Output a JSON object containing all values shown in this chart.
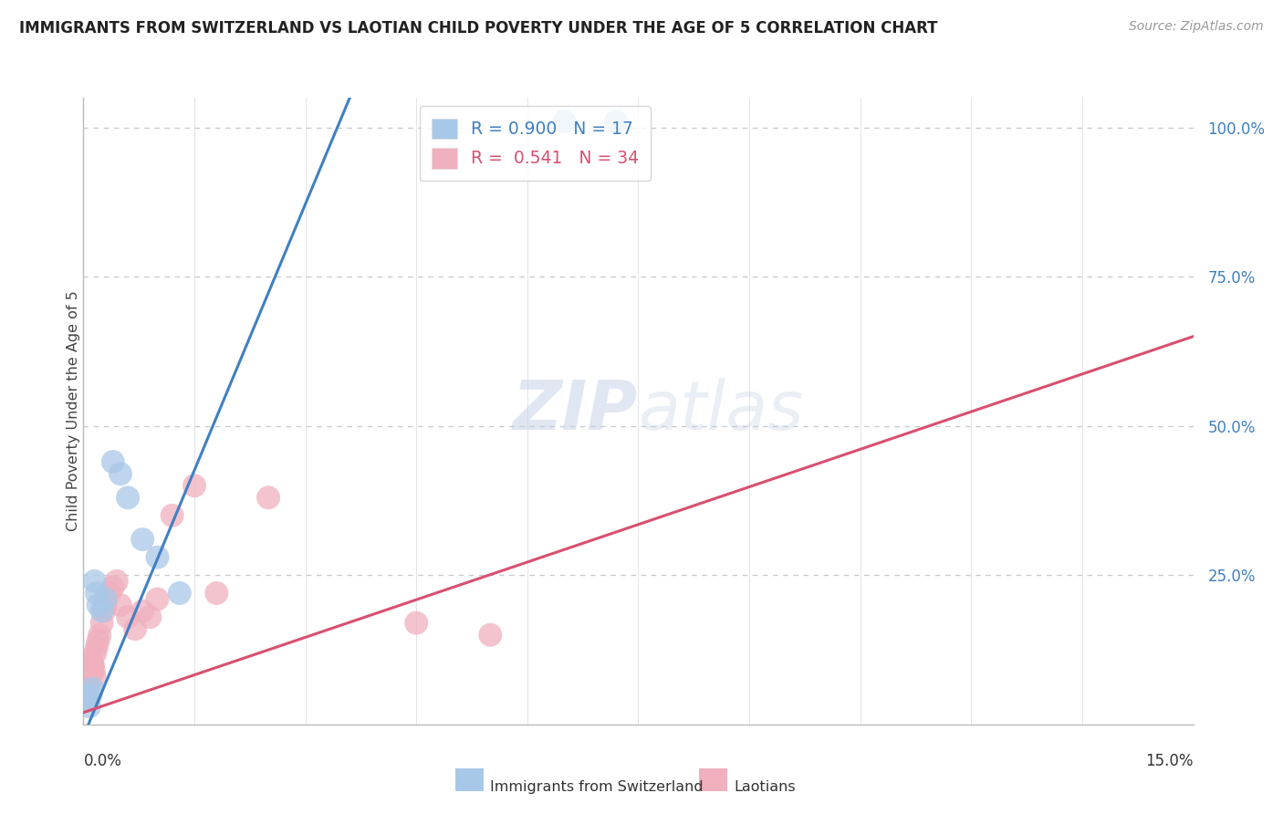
{
  "title": "IMMIGRANTS FROM SWITZERLAND VS LAOTIAN CHILD POVERTY UNDER THE AGE OF 5 CORRELATION CHART",
  "source": "Source: ZipAtlas.com",
  "ylabel": "Child Poverty Under the Age of 5",
  "watermark_zip": "ZIP",
  "watermark_atlas": "atlas",
  "legend_blue_r": "0.900",
  "legend_blue_n": "17",
  "legend_pink_r": "0.541",
  "legend_pink_n": "34",
  "blue_scatter_color": "#a8c8e8",
  "pink_scatter_color": "#f0b0be",
  "blue_line_color": "#4080c0",
  "pink_line_color": "#d85070",
  "background_color": "#ffffff",
  "grid_color": "#c8ccd0",
  "xlim": [
    0,
    15
  ],
  "ylim": [
    0,
    1.05
  ],
  "blue_line_x0": 0.0,
  "blue_line_y0": -0.02,
  "blue_line_x1": 3.6,
  "blue_line_y1": 1.05,
  "pink_line_x0": 0.0,
  "pink_line_y0": 0.02,
  "pink_line_x1": 15.0,
  "pink_line_y1": 0.65,
  "blue_x": [
    0.05,
    0.08,
    0.1,
    0.12,
    0.15,
    0.18,
    0.2,
    0.25,
    0.3,
    0.4,
    0.5,
    0.6,
    0.8,
    1.0,
    1.3,
    6.5,
    7.2
  ],
  "blue_y": [
    0.04,
    0.03,
    0.05,
    0.06,
    0.24,
    0.22,
    0.2,
    0.19,
    0.21,
    0.44,
    0.42,
    0.38,
    0.31,
    0.28,
    0.22,
    1.01,
    1.01
  ],
  "pink_x": [
    0.03,
    0.05,
    0.06,
    0.07,
    0.08,
    0.09,
    0.1,
    0.11,
    0.12,
    0.13,
    0.14,
    0.15,
    0.16,
    0.18,
    0.2,
    0.22,
    0.25,
    0.28,
    0.3,
    0.35,
    0.4,
    0.45,
    0.5,
    0.6,
    0.7,
    0.8,
    0.9,
    1.0,
    1.2,
    1.5,
    1.8,
    2.5,
    4.5,
    5.5
  ],
  "pink_y": [
    0.05,
    0.06,
    0.04,
    0.07,
    0.09,
    0.1,
    0.11,
    0.09,
    0.1,
    0.1,
    0.09,
    0.08,
    0.12,
    0.13,
    0.14,
    0.15,
    0.17,
    0.19,
    0.2,
    0.22,
    0.23,
    0.24,
    0.2,
    0.18,
    0.16,
    0.19,
    0.18,
    0.21,
    0.35,
    0.4,
    0.22,
    0.38,
    0.17,
    0.15
  ]
}
